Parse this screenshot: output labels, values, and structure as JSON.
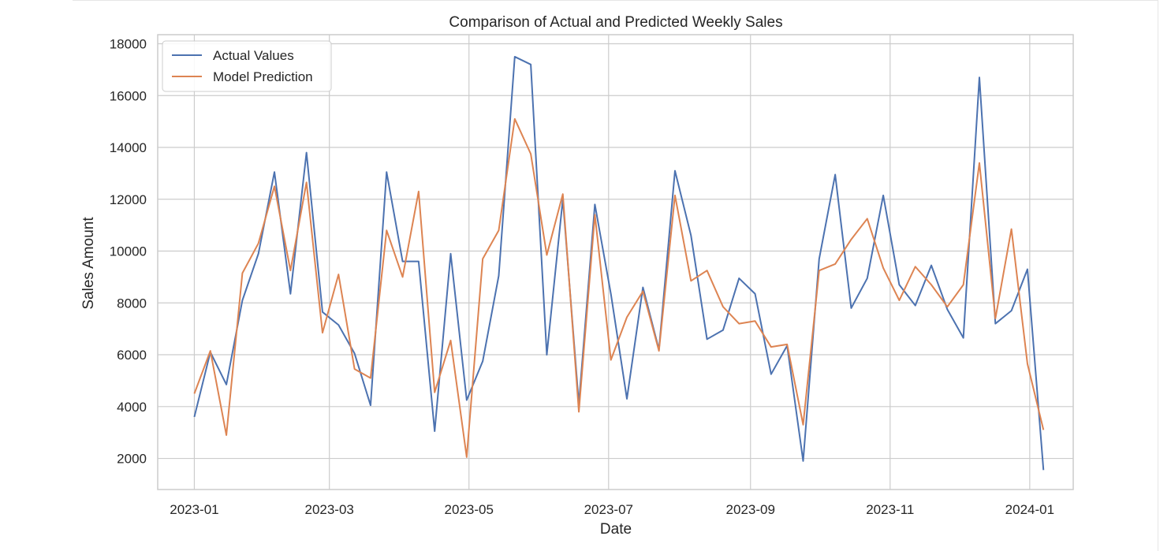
{
  "chart_data": {
    "type": "line",
    "title": "Comparison of Actual and Predicted Weekly Sales",
    "xlabel": "Date",
    "ylabel": "Sales Amount",
    "x_ticks": [
      "2023-01",
      "2023-03",
      "2023-05",
      "2023-07",
      "2023-09",
      "2023-11",
      "2024-01"
    ],
    "y_ticks": [
      2000,
      4000,
      6000,
      8000,
      10000,
      12000,
      14000,
      16000,
      18000
    ],
    "ylim": [
      800,
      18350
    ],
    "xlim": [
      "2022-12-16",
      "2024-01-20"
    ],
    "grid": true,
    "legend_position": "top-left",
    "x": [
      "2023-01-01",
      "2023-01-08",
      "2023-01-15",
      "2023-01-22",
      "2023-01-29",
      "2023-02-05",
      "2023-02-12",
      "2023-02-19",
      "2023-02-26",
      "2023-03-05",
      "2023-03-12",
      "2023-03-19",
      "2023-03-26",
      "2023-04-02",
      "2023-04-09",
      "2023-04-16",
      "2023-04-23",
      "2023-04-30",
      "2023-05-07",
      "2023-05-14",
      "2023-05-21",
      "2023-05-28",
      "2023-06-04",
      "2023-06-11",
      "2023-06-18",
      "2023-06-25",
      "2023-07-02",
      "2023-07-09",
      "2023-07-16",
      "2023-07-23",
      "2023-07-30",
      "2023-08-06",
      "2023-08-13",
      "2023-08-20",
      "2023-08-27",
      "2023-09-03",
      "2023-09-10",
      "2023-09-17",
      "2023-09-24",
      "2023-10-01",
      "2023-10-08",
      "2023-10-15",
      "2023-10-22",
      "2023-10-29",
      "2023-11-05",
      "2023-11-12",
      "2023-11-19",
      "2023-11-26",
      "2023-12-03",
      "2023-12-10",
      "2023-12-17",
      "2023-12-24",
      "2023-12-31",
      "2024-01-07"
    ],
    "series": [
      {
        "name": "Actual Values",
        "color": "#4c72b0",
        "values": [
          3600,
          6100,
          4850,
          8100,
          9900,
          13050,
          8350,
          13800,
          7650,
          7150,
          6050,
          4050,
          13050,
          9600,
          9600,
          3050,
          9900,
          4250,
          5750,
          9050,
          17500,
          17200,
          6000,
          12000,
          4100,
          11800,
          8350,
          4300,
          8600,
          6200,
          13100,
          10600,
          6600,
          6950,
          8950,
          8350,
          5250,
          6350,
          1900,
          9700,
          12950,
          7800,
          8950,
          12150,
          8700,
          7900,
          9450,
          7750,
          6650,
          16700,
          7200,
          7700,
          9300,
          1550
        ]
      },
      {
        "name": "Model Prediction",
        "color": "#dd8452",
        "values": [
          4500,
          6150,
          2900,
          9150,
          10300,
          12500,
          9250,
          12650,
          6850,
          9100,
          5450,
          5100,
          10800,
          9000,
          12300,
          4550,
          6550,
          2050,
          9700,
          10800,
          15100,
          13750,
          9850,
          12200,
          3800,
          11400,
          5800,
          7450,
          8450,
          6150,
          12150,
          8850,
          9250,
          7850,
          7200,
          7300,
          6300,
          6400,
          3300,
          9250,
          9500,
          10450,
          11250,
          9350,
          8100,
          9400,
          8700,
          7850,
          8700,
          13400,
          7400,
          10850,
          5650,
          3100
        ]
      }
    ]
  }
}
